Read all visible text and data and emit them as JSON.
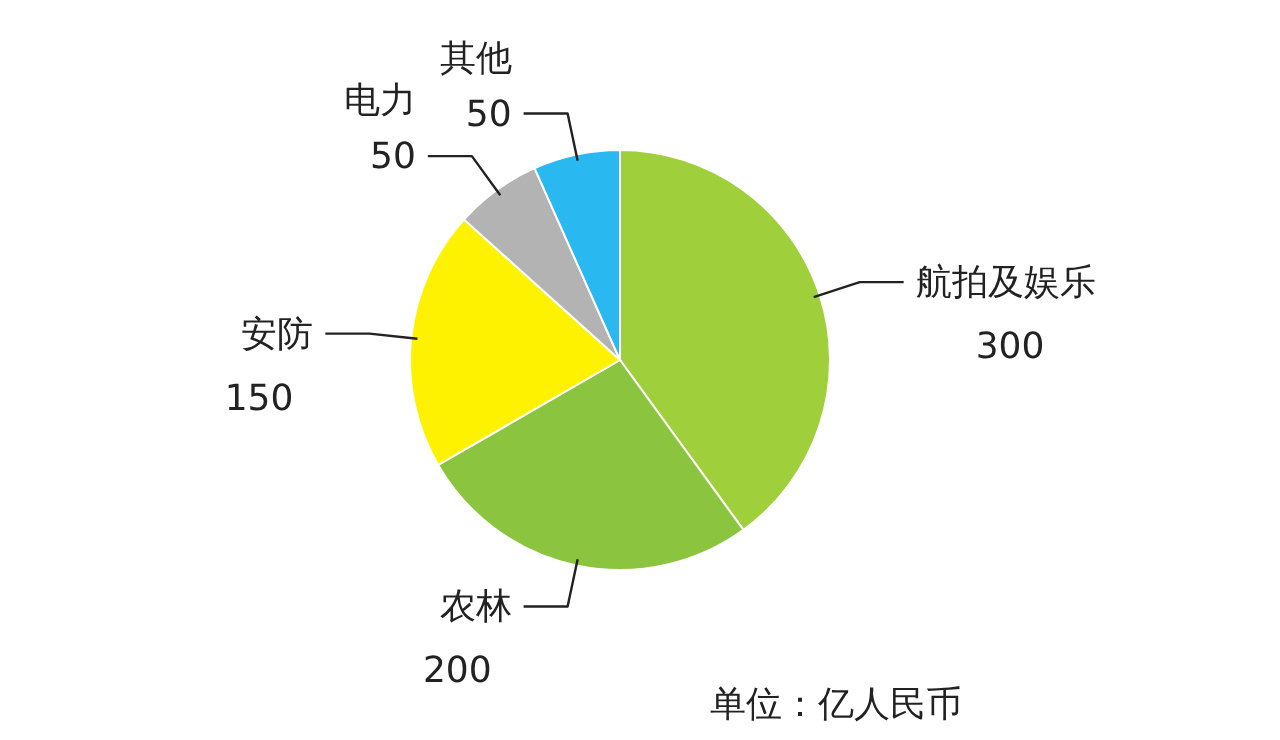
{
  "chart_data": {
    "type": "pie",
    "categories": [
      "航拍及娱乐",
      "农林",
      "安防",
      "电力",
      "其他"
    ],
    "values": [
      300,
      200,
      150,
      50,
      50
    ],
    "colors": [
      "#9fcf3a",
      "#8bc53f",
      "#fff200",
      "#b3b3b3",
      "#29b9f0"
    ],
    "data_labels": true,
    "annotations": [
      "单位：亿人民币"
    ]
  }
}
